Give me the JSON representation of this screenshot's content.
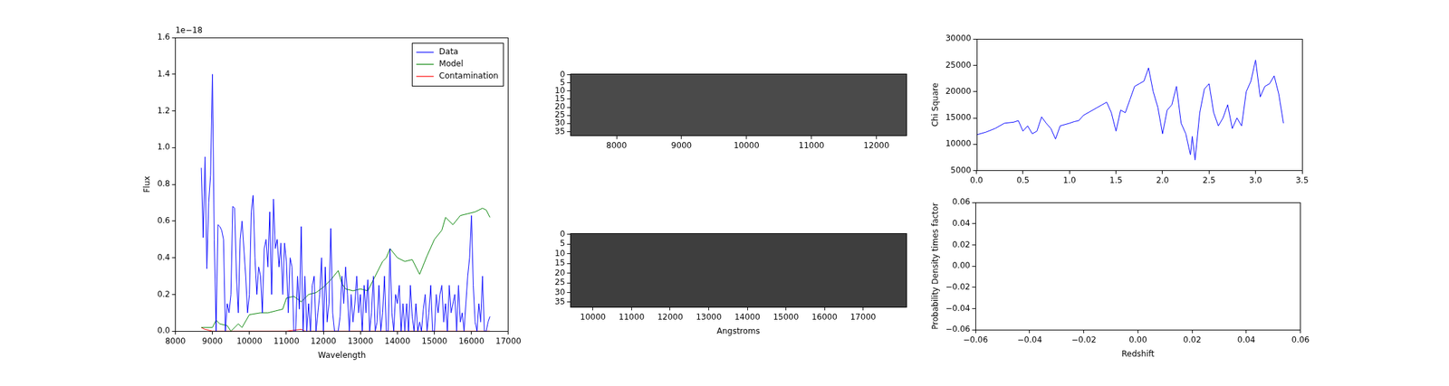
{
  "chart_data": [
    {
      "type": "line",
      "x_label": "Wavelength",
      "y_label": "Flux",
      "annotation": "1e−18",
      "legend": "upper right",
      "grid": false,
      "xlim": [
        8000,
        17000
      ],
      "xticks": [
        8000,
        9000,
        10000,
        11000,
        12000,
        13000,
        14000,
        15000,
        16000,
        17000
      ],
      "ylim": [
        0,
        1.6
      ],
      "yticks": [
        {
          "value": 0,
          "label": "0.0"
        },
        0.2,
        0.4,
        0.6,
        0.8,
        {
          "value": 1,
          "label": "1.0"
        },
        1.2,
        1.4,
        1.6
      ],
      "series": [
        {
          "name": "Data",
          "color": "#0000ff",
          "x": [
            8700,
            8750,
            8800,
            8850,
            8900,
            8950,
            9000,
            9050,
            9100,
            9150,
            9200,
            9250,
            9300,
            9350,
            9400,
            9450,
            9500,
            9550,
            9600,
            9650,
            9700,
            9750,
            9800,
            9850,
            9900,
            9950,
            10000,
            10050,
            10100,
            10150,
            10200,
            10250,
            10300,
            10350,
            10400,
            10450,
            10500,
            10550,
            10600,
            10650,
            10700,
            10750,
            10800,
            10850,
            10900,
            10950,
            11000,
            11050,
            11100,
            11150,
            11200,
            11250,
            11300,
            11350,
            11400,
            11450,
            11500,
            11550,
            11600,
            11650,
            11700,
            11750,
            11800,
            11850,
            11900,
            11950,
            12000,
            12050,
            12100,
            12150,
            12200,
            12250,
            12300,
            12350,
            12400,
            12450,
            12500,
            12550,
            12600,
            12650,
            12700,
            12750,
            12800,
            12850,
            12900,
            12950,
            13000,
            13050,
            13100,
            13150,
            13200,
            13250,
            13300,
            13350,
            13400,
            13450,
            13500,
            13550,
            13600,
            13650,
            13700,
            13750,
            13800,
            13850,
            13900,
            13950,
            14000,
            14050,
            14100,
            14150,
            14200,
            14250,
            14300,
            14350,
            14400,
            14450,
            14500,
            14550,
            14600,
            14650,
            14700,
            14750,
            14800,
            14850,
            14900,
            14950,
            15000,
            15050,
            15100,
            15150,
            15200,
            15250,
            15300,
            15350,
            15400,
            15450,
            15500,
            15550,
            15600,
            15650,
            15700,
            15750,
            15800,
            15850,
            15900,
            15950,
            16000,
            16050,
            16100,
            16150,
            16200,
            16250,
            16300,
            16350,
            16400,
            16450,
            16500
          ],
          "values": [
            0.89,
            0.51,
            0.95,
            0.34,
            0.7,
            0.85,
            1.4,
            0.5,
            0,
            0.58,
            0.57,
            0.55,
            0.5,
            0,
            0.15,
            0.1,
            0.2,
            0.68,
            0.67,
            0.3,
            0.1,
            0.5,
            0.6,
            0.45,
            0.3,
            0.1,
            0.2,
            0.65,
            0.74,
            0.4,
            0.2,
            0.35,
            0.3,
            0.1,
            0.45,
            0.5,
            0.35,
            0.65,
            0.2,
            0.72,
            0.45,
            0.5,
            0.35,
            0.48,
            0.2,
            0.48,
            0.38,
            0.1,
            0.4,
            0.35,
            0,
            0,
            0.3,
            0.12,
            0.57,
            0,
            0.3,
            0,
            0.15,
            0,
            0.25,
            0.3,
            0,
            0.1,
            0.2,
            0.4,
            0,
            0.35,
            0.05,
            0.15,
            0.56,
            0.1,
            0,
            0,
            0,
            0.08,
            0.3,
            0.15,
            0.35,
            0.2,
            0,
            0.2,
            0.05,
            0.15,
            0.3,
            0.1,
            0.2,
            0,
            0.25,
            0.1,
            0.28,
            0,
            0.1,
            0.3,
            0,
            0.05,
            0.25,
            0,
            0.1,
            0.3,
            0,
            0,
            0.45,
            0.1,
            0,
            0.2,
            0.15,
            0.25,
            0,
            0.15,
            0,
            0.15,
            0,
            0.25,
            0.08,
            0,
            0.15,
            0,
            0.05,
            0,
            0.12,
            0.2,
            0,
            0.1,
            0.25,
            0,
            0,
            0.2,
            0.1,
            0.2,
            0.25,
            0.05,
            0.15,
            0,
            0.25,
            0.1,
            0.15,
            0.2,
            0,
            0.25,
            0.05,
            0.1,
            0,
            0.15,
            0.3,
            0.4,
            0.63,
            0.25,
            0.05,
            0,
            0.15,
            0.05,
            0.3,
            0,
            0,
            0.05,
            0.08
          ]
        },
        {
          "name": "Model",
          "color": "#008000",
          "x": [
            8700,
            9000,
            9100,
            9200,
            9400,
            9500,
            9700,
            9800,
            10000,
            10300,
            10500,
            10700,
            10900,
            11000,
            11200,
            11400,
            11600,
            11800,
            12000,
            12200,
            12400,
            12500,
            12600,
            12800,
            13000,
            13200,
            13400,
            13600,
            13700,
            13800,
            14000,
            14200,
            14400,
            14600,
            14800,
            15000,
            15200,
            15300,
            15500,
            15700,
            15900,
            16100,
            16300,
            16400,
            16500
          ],
          "values": [
            0.02,
            0.02,
            0.06,
            0.04,
            0.03,
            0,
            0.04,
            0.02,
            0.09,
            0.1,
            0.1,
            0.11,
            0.12,
            0.18,
            0.19,
            0.16,
            0.2,
            0.21,
            0.24,
            0.28,
            0.33,
            0.26,
            0.23,
            0.22,
            0.23,
            0.22,
            0.3,
            0.38,
            0.4,
            0.45,
            0.4,
            0.38,
            0.39,
            0.31,
            0.41,
            0.5,
            0.55,
            0.62,
            0.58,
            0.63,
            0.64,
            0.65,
            0.67,
            0.66,
            0.62
          ]
        },
        {
          "name": "Contamination",
          "color": "#ff0000",
          "x": [
            8700,
            8800,
            9000,
            10000,
            11000,
            11400,
            11500,
            12500,
            14000,
            16500
          ],
          "values": [
            0.02,
            0.01,
            0,
            0,
            0,
            0.01,
            0,
            0,
            0,
            0
          ]
        }
      ]
    },
    {
      "type": "image",
      "color": "#4a4a4a",
      "xlim": [
        7290,
        12460
      ],
      "xticks": [
        8000,
        9000,
        10000,
        11000,
        12000
      ],
      "ylim": [
        37.5,
        -0.5
      ],
      "yticks": [
        0,
        5,
        10,
        15,
        20,
        25,
        30,
        35
      ]
    },
    {
      "type": "image",
      "color": "#3e3e3e",
      "x_label": "Angstroms",
      "xlim": [
        9415,
        18120
      ],
      "xticks": [
        10000,
        11000,
        12000,
        13000,
        14000,
        15000,
        16000,
        17000
      ],
      "ylim": [
        37.5,
        -0.5
      ],
      "yticks": [
        0,
        5,
        10,
        15,
        20,
        25,
        30,
        35
      ]
    },
    {
      "type": "line",
      "y_label": "Chi Square",
      "grid": false,
      "xlim": [
        0,
        3.5
      ],
      "xticks": [
        {
          "value": 0,
          "label": "0.0"
        },
        0.5,
        {
          "value": 1,
          "label": "1.0"
        },
        1.5,
        {
          "value": 2,
          "label": "2.0"
        },
        2.5,
        {
          "value": 3,
          "label": "3.0"
        },
        3.5
      ],
      "ylim": [
        5000,
        30000
      ],
      "yticks": [
        5000,
        10000,
        15000,
        20000,
        25000,
        30000
      ],
      "series": [
        {
          "name": "Chi Square",
          "color": "#0000ff",
          "x": [
            0,
            0.1,
            0.2,
            0.3,
            0.4,
            0.45,
            0.5,
            0.55,
            0.6,
            0.65,
            0.7,
            0.75,
            0.8,
            0.85,
            0.9,
            1.0,
            1.05,
            1.1,
            1.15,
            1.2,
            1.25,
            1.3,
            1.35,
            1.4,
            1.45,
            1.5,
            1.55,
            1.6,
            1.65,
            1.7,
            1.75,
            1.8,
            1.85,
            1.9,
            1.95,
            2.0,
            2.05,
            2.1,
            2.15,
            2.2,
            2.25,
            2.3,
            2.32,
            2.35,
            2.4,
            2.45,
            2.5,
            2.55,
            2.6,
            2.65,
            2.7,
            2.75,
            2.8,
            2.85,
            2.9,
            2.95,
            3.0,
            3.05,
            3.1,
            3.15,
            3.2,
            3.25,
            3.3
          ],
          "values": [
            11800,
            12300,
            13000,
            14000,
            14200,
            14500,
            12500,
            13500,
            12000,
            12500,
            15200,
            14000,
            13000,
            11000,
            13500,
            14000,
            14300,
            14500,
            15500,
            16000,
            16500,
            17000,
            17500,
            18000,
            16000,
            12500,
            16500,
            16000,
            18500,
            21000,
            21500,
            22000,
            24500,
            20000,
            17000,
            12000,
            16500,
            17500,
            21000,
            14000,
            12000,
            8000,
            11500,
            7000,
            16000,
            20500,
            21500,
            16000,
            13500,
            15000,
            17500,
            13000,
            15000,
            13500,
            20000,
            22000,
            26000,
            19000,
            21000,
            21500,
            23000,
            19500,
            14000
          ]
        }
      ]
    },
    {
      "type": "line",
      "x_label": "Redshift",
      "y_label": "Probability Density times factor",
      "grid": false,
      "xlim": [
        -0.06,
        0.06
      ],
      "xticks": [
        {
          "value": -0.06,
          "label": "−0.06"
        },
        {
          "value": -0.04,
          "label": "−0.04"
        },
        {
          "value": -0.02,
          "label": "−0.02"
        },
        {
          "value": 0,
          "label": "0.00"
        },
        0.02,
        0.04,
        0.06
      ],
      "ylim": [
        -0.06,
        0.06
      ],
      "yticks": [
        {
          "value": -0.06,
          "label": "−0.06"
        },
        {
          "value": -0.04,
          "label": "−0.04"
        },
        {
          "value": -0.02,
          "label": "−0.02"
        },
        {
          "value": 0,
          "label": "0.00"
        },
        0.02,
        0.04,
        0.06
      ],
      "series": []
    }
  ]
}
